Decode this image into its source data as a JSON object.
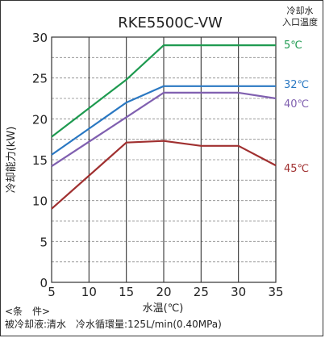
{
  "chart_data": {
    "type": "line",
    "title": "RKE5500C-VW",
    "legend_heading": [
      "冷却水",
      "入口温度"
    ],
    "xlabel": "水温(℃)",
    "ylabel": "冷却能力(kW)",
    "xlim": [
      5,
      35
    ],
    "ylim": [
      0,
      30
    ],
    "x_ticks": [
      5,
      10,
      15,
      20,
      25,
      30,
      35
    ],
    "y_ticks": [
      0,
      5,
      10,
      15,
      20,
      25,
      30
    ],
    "grid": "dashed horizontal at 2.5 kW steps",
    "series": [
      {
        "name": "5℃",
        "color": "#1e9a50",
        "points": [
          [
            5,
            17.8
          ],
          [
            15,
            24.8
          ],
          [
            20,
            29.0
          ],
          [
            35,
            29.0
          ]
        ]
      },
      {
        "name": "32℃",
        "color": "#2a78c2",
        "points": [
          [
            5,
            15.6
          ],
          [
            15,
            22.0
          ],
          [
            20,
            24.0
          ],
          [
            35,
            24.0
          ]
        ]
      },
      {
        "name": "40℃",
        "color": "#8060b0",
        "points": [
          [
            5,
            14.2
          ],
          [
            15,
            20.2
          ],
          [
            20,
            23.2
          ],
          [
            30,
            23.2
          ],
          [
            35,
            22.5
          ]
        ]
      },
      {
        "name": "45℃",
        "color": "#a03030",
        "points": [
          [
            5,
            9.0
          ],
          [
            15,
            17.1
          ],
          [
            20,
            17.3
          ],
          [
            25,
            16.7
          ],
          [
            30,
            16.7
          ],
          [
            35,
            14.3
          ]
        ]
      }
    ]
  },
  "conditions": {
    "heading": "<条　件>",
    "line": "被冷却液:清水　冷水循環量:125L/min(0.40MPa)"
  }
}
